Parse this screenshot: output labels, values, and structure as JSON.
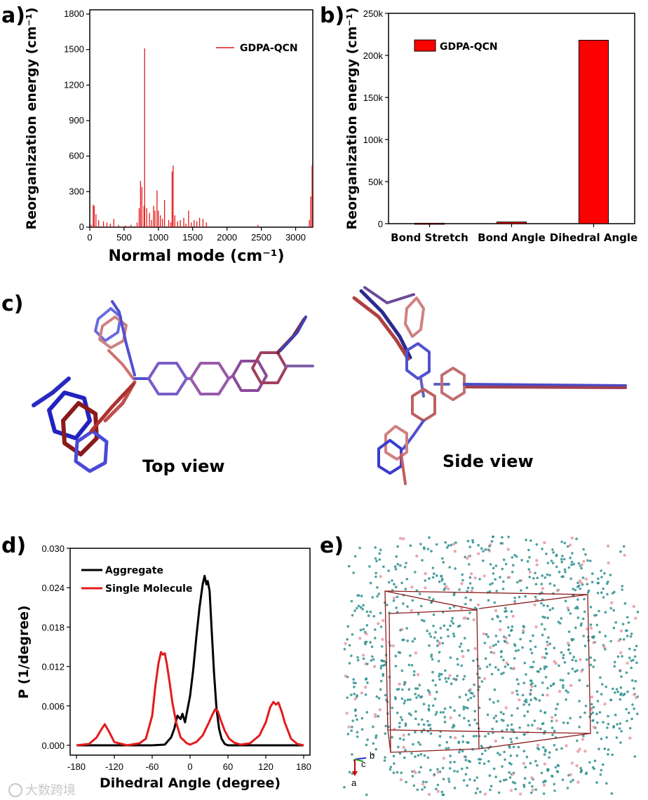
{
  "panels": {
    "a": "a)",
    "b": "b)",
    "c": "c)",
    "d": "d)",
    "e": "e)"
  },
  "views": {
    "top": "Top view",
    "side": "Side view"
  },
  "axes_labels": {
    "a": "a",
    "b": "b",
    "c": "c"
  },
  "watermark": "大数跨境",
  "colors": {
    "red": "#e41a1c",
    "bar": "#ff0000",
    "black": "#000000",
    "molecule_blue": "#3a3ad0",
    "molecule_red": "#b03030",
    "crystal": "#2f8f8f"
  },
  "chart_data": [
    {
      "id": "a",
      "type": "bar",
      "xlabel": "Normal mode (cm⁻¹)",
      "ylabel": "Reorganization energy (cm⁻¹)",
      "xlim": [
        0,
        3250
      ],
      "ylim": [
        0,
        1800
      ],
      "xticks": [
        "0",
        "500",
        "1000",
        "1500",
        "2000",
        "2500",
        "3000"
      ],
      "yticks": [
        "0",
        "300",
        "600",
        "900",
        "1200",
        "1500",
        "1800"
      ],
      "legend": "GDPA-QCN",
      "series": [
        {
          "name": "GDPA-QCN",
          "x": [
            20,
            50,
            65,
            90,
            130,
            200,
            250,
            300,
            350,
            420,
            520,
            600,
            690,
            720,
            740,
            760,
            790,
            800,
            830,
            870,
            900,
            930,
            950,
            980,
            1000,
            1030,
            1060,
            1090,
            1150,
            1180,
            1200,
            1215,
            1240,
            1280,
            1320,
            1370,
            1400,
            1440,
            1480,
            1520,
            1560,
            1600,
            1650,
            1700,
            2450,
            3200,
            3220,
            3240
          ],
          "values": [
            20,
            190,
            180,
            110,
            60,
            50,
            40,
            30,
            70,
            20,
            15,
            20,
            40,
            160,
            390,
            340,
            180,
            1510,
            160,
            120,
            60,
            180,
            140,
            310,
            140,
            100,
            70,
            230,
            60,
            40,
            470,
            520,
            100,
            50,
            60,
            80,
            30,
            140,
            40,
            60,
            50,
            80,
            70,
            40,
            20,
            60,
            260,
            520
          ]
        }
      ]
    },
    {
      "id": "b",
      "type": "bar",
      "categories": [
        "Bond Stretch",
        "Bond Angle",
        "Dihedral Angle"
      ],
      "values": [
        500,
        2000,
        218000
      ],
      "ylabel": "Reorganization energy (cm⁻¹)",
      "ylim": [
        0,
        250000
      ],
      "yticks": [
        "0",
        "50k",
        "100k",
        "150k",
        "200k",
        "250k"
      ],
      "legend": "GDPA-QCN"
    },
    {
      "id": "d",
      "type": "line",
      "xlabel": "Dihedral Angle (degree)",
      "ylabel": "P (1/degree)",
      "xlim": [
        -190,
        190
      ],
      "ylim": [
        -0.0015,
        0.03
      ],
      "xticks": [
        "-180",
        "-120",
        "-60",
        "0",
        "60",
        "120",
        "180"
      ],
      "yticks": [
        "0.000",
        "0.006",
        "0.012",
        "0.018",
        "0.024",
        "0.030"
      ],
      "series": [
        {
          "name": "Aggregate",
          "x": [
            -180,
            -60,
            -40,
            -30,
            -25,
            -20,
            -15,
            -12,
            -8,
            -5,
            0,
            5,
            10,
            15,
            20,
            23,
            26,
            28,
            31,
            34,
            38,
            42,
            46,
            50,
            55,
            60,
            70,
            100,
            180
          ],
          "y": [
            0,
            0,
            0.0001,
            0.0012,
            0.0025,
            0.0045,
            0.004,
            0.0048,
            0.0035,
            0.005,
            0.0075,
            0.0115,
            0.0165,
            0.021,
            0.0245,
            0.0258,
            0.0245,
            0.025,
            0.0235,
            0.018,
            0.011,
            0.0055,
            0.0025,
            0.001,
            0.0002,
            0,
            0,
            0,
            0
          ]
        },
        {
          "name": "Single Molecule",
          "x": [
            -180,
            -160,
            -148,
            -140,
            -135,
            -128,
            -120,
            -100,
            -80,
            -70,
            -60,
            -55,
            -50,
            -46,
            -43,
            -40,
            -37,
            -33,
            -28,
            -22,
            -15,
            -5,
            0,
            10,
            20,
            30,
            36,
            40,
            44,
            48,
            55,
            62,
            70,
            80,
            95,
            110,
            120,
            127,
            132,
            136,
            140,
            145,
            150,
            160,
            170,
            180
          ],
          "y": [
            0,
            0.0002,
            0.0012,
            0.0025,
            0.0032,
            0.002,
            0.0005,
            0,
            0.0003,
            0.001,
            0.0045,
            0.009,
            0.0125,
            0.0142,
            0.0138,
            0.014,
            0.0125,
            0.01,
            0.0065,
            0.0035,
            0.0012,
            0.0003,
            0.0001,
            0.0005,
            0.0015,
            0.0035,
            0.0048,
            0.0055,
            0.0052,
            0.004,
            0.0022,
            0.001,
            0.0004,
            0.0001,
            0.0003,
            0.0015,
            0.0035,
            0.0058,
            0.0066,
            0.0062,
            0.0065,
            0.0052,
            0.0035,
            0.001,
            0.0002,
            0
          ]
        }
      ]
    }
  ]
}
